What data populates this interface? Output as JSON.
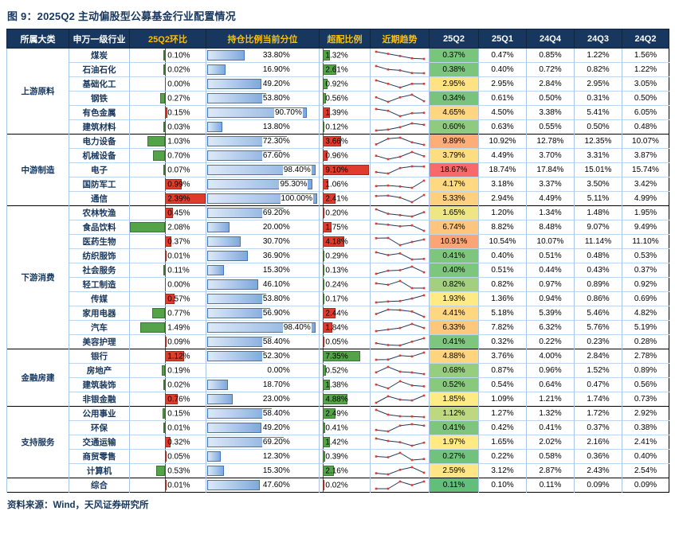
{
  "title": "图 9：2025Q2 主动偏股型公募基金行业配置情况",
  "source": "资料来源：Wind，天风证券研究所",
  "colors": {
    "header_bg": "#17375E",
    "header_text": "#FFFFFF",
    "header_highlight": "#FFC000",
    "up": "#E03C2D",
    "down": "#55A348",
    "percentile_bar_border": "#4472C4",
    "heat_low": "#63BE7B",
    "heat_mid": "#FFEB84",
    "heat_high": "#F8696B",
    "spark_line": "#1F3864",
    "spark_marker": "#E03C2D"
  },
  "chart_data": {
    "type": "table",
    "title": "图 9：2025Q2 主动偏股型公募基金行业配置情况",
    "columns": [
      "所属大类",
      "申万一级行业",
      "25Q2环比",
      "持仓比例当前分位",
      "超配比例",
      "近期趋势",
      "25Q2",
      "25Q1",
      "24Q4",
      "24Q3",
      "24Q2"
    ],
    "quarters_order": [
      "25Q2",
      "25Q1",
      "24Q4",
      "24Q3",
      "24Q2"
    ],
    "notes": "qoq=25Q2环比(%), pctile=持仓比例当前分位(%), ow=超配比例(%), quarters=持仓比例(%) 25Q2→24Q2; 正值红色、负值绿色",
    "groups": [
      {
        "name": "上游原料",
        "rows": [
          {
            "industry": "煤炭",
            "qoq": -0.1,
            "pctile": 33.8,
            "ow": -1.32,
            "quarters": [
              0.37,
              0.47,
              0.85,
              1.22,
              1.56
            ]
          },
          {
            "industry": "石油石化",
            "qoq": -0.02,
            "pctile": 16.9,
            "ow": -2.61,
            "quarters": [
              0.38,
              0.4,
              0.72,
              0.82,
              1.22
            ]
          },
          {
            "industry": "基础化工",
            "qoq": 0.0,
            "pctile": 49.2,
            "ow": -0.92,
            "quarters": [
              2.95,
              2.95,
              2.84,
              2.95,
              3.05
            ]
          },
          {
            "industry": "钢铁",
            "qoq": -0.27,
            "pctile": 53.8,
            "ow": -0.56,
            "quarters": [
              0.34,
              0.61,
              0.5,
              0.31,
              0.5
            ]
          },
          {
            "industry": "有色金属",
            "qoq": 0.15,
            "pctile": 90.7,
            "ow": 1.39,
            "quarters": [
              4.65,
              4.5,
              3.38,
              5.41,
              6.05
            ]
          },
          {
            "industry": "建筑材料",
            "qoq": -0.03,
            "pctile": 13.8,
            "ow": -0.12,
            "quarters": [
              0.6,
              0.63,
              0.55,
              0.5,
              0.48
            ]
          }
        ]
      },
      {
        "name": "中游制造",
        "rows": [
          {
            "industry": "电力设备",
            "qoq": -1.03,
            "pctile": 72.3,
            "ow": 3.66,
            "quarters": [
              9.89,
              10.92,
              12.78,
              12.35,
              10.07
            ]
          },
          {
            "industry": "机械设备",
            "qoq": -0.7,
            "pctile": 67.6,
            "ow": 0.96,
            "quarters": [
              3.79,
              4.49,
              3.7,
              3.31,
              3.87
            ]
          },
          {
            "industry": "电子",
            "qoq": -0.07,
            "pctile": 98.4,
            "ow": 9.1,
            "quarters": [
              18.67,
              18.74,
              17.84,
              15.01,
              15.74
            ]
          },
          {
            "industry": "国防军工",
            "qoq": 0.99,
            "pctile": 95.3,
            "ow": 1.06,
            "quarters": [
              4.17,
              3.18,
              3.37,
              3.5,
              3.42
            ]
          },
          {
            "industry": "通信",
            "qoq": 2.39,
            "pctile": 100.0,
            "ow": 2.41,
            "quarters": [
              5.33,
              2.94,
              4.49,
              5.11,
              4.99
            ]
          }
        ]
      },
      {
        "name": "下游消费",
        "rows": [
          {
            "industry": "农林牧渔",
            "qoq": 0.45,
            "pctile": 69.2,
            "ow": 0.2,
            "quarters": [
              1.65,
              1.2,
              1.34,
              1.48,
              1.95
            ]
          },
          {
            "industry": "食品饮料",
            "qoq": -2.08,
            "pctile": 20.0,
            "ow": 1.75,
            "quarters": [
              6.74,
              8.82,
              8.48,
              9.07,
              9.49
            ]
          },
          {
            "industry": "医药生物",
            "qoq": 0.37,
            "pctile": 30.7,
            "ow": 4.18,
            "quarters": [
              10.91,
              10.54,
              10.07,
              11.14,
              11.1
            ]
          },
          {
            "industry": "纺织服饰",
            "qoq": 0.01,
            "pctile": 36.9,
            "ow": -0.29,
            "quarters": [
              0.41,
              0.4,
              0.51,
              0.48,
              0.53
            ]
          },
          {
            "industry": "社会服务",
            "qoq": -0.11,
            "pctile": 15.3,
            "ow": -0.13,
            "quarters": [
              0.4,
              0.51,
              0.44,
              0.43,
              0.37
            ]
          },
          {
            "industry": "轻工制造",
            "qoq": 0.0,
            "pctile": 46.1,
            "ow": -0.24,
            "quarters": [
              0.82,
              0.82,
              0.97,
              0.89,
              0.92
            ]
          },
          {
            "industry": "传媒",
            "qoq": 0.57,
            "pctile": 53.8,
            "ow": -0.17,
            "quarters": [
              1.93,
              1.36,
              0.94,
              0.86,
              0.69
            ]
          },
          {
            "industry": "家用电器",
            "qoq": -0.77,
            "pctile": 56.9,
            "ow": 2.44,
            "quarters": [
              4.41,
              5.18,
              5.39,
              5.46,
              4.82
            ]
          },
          {
            "industry": "汽车",
            "qoq": -1.49,
            "pctile": 98.4,
            "ow": 1.84,
            "quarters": [
              6.33,
              7.82,
              6.32,
              5.76,
              5.19
            ]
          },
          {
            "industry": "美容护理",
            "qoq": 0.09,
            "pctile": 58.4,
            "ow": 0.05,
            "quarters": [
              0.41,
              0.32,
              0.22,
              0.23,
              0.28
            ]
          }
        ]
      },
      {
        "name": "金融房建",
        "rows": [
          {
            "industry": "银行",
            "qoq": 1.12,
            "pctile": 52.3,
            "ow": -7.35,
            "quarters": [
              4.88,
              3.76,
              4.0,
              2.84,
              2.78
            ]
          },
          {
            "industry": "房地产",
            "qoq": -0.19,
            "pctile": 0.0,
            "ow": -0.52,
            "quarters": [
              0.68,
              0.87,
              0.96,
              1.52,
              0.89
            ]
          },
          {
            "industry": "建筑装饰",
            "qoq": -0.02,
            "pctile": 18.7,
            "ow": -1.38,
            "quarters": [
              0.52,
              0.54,
              0.64,
              0.47,
              0.56
            ]
          },
          {
            "industry": "非银金融",
            "qoq": 0.76,
            "pctile": 23.0,
            "ow": -4.88,
            "quarters": [
              1.85,
              1.09,
              1.21,
              1.74,
              0.73
            ]
          }
        ]
      },
      {
        "name": "支持服务",
        "rows": [
          {
            "industry": "公用事业",
            "qoq": -0.15,
            "pctile": 58.4,
            "ow": -2.49,
            "quarters": [
              1.12,
              1.27,
              1.32,
              1.72,
              2.92
            ]
          },
          {
            "industry": "环保",
            "qoq": -0.01,
            "pctile": 49.2,
            "ow": -0.41,
            "quarters": [
              0.41,
              0.42,
              0.41,
              0.37,
              0.38
            ]
          },
          {
            "industry": "交通运输",
            "qoq": 0.32,
            "pctile": 69.2,
            "ow": -1.42,
            "quarters": [
              1.97,
              1.65,
              2.02,
              2.16,
              2.41
            ]
          },
          {
            "industry": "商贸零售",
            "qoq": 0.05,
            "pctile": 12.3,
            "ow": -0.39,
            "quarters": [
              0.27,
              0.22,
              0.58,
              0.36,
              0.4
            ]
          },
          {
            "industry": "计算机",
            "qoq": -0.53,
            "pctile": 15.3,
            "ow": -2.16,
            "quarters": [
              2.59,
              3.12,
              2.87,
              2.43,
              2.54
            ]
          }
        ]
      },
      {
        "name": "",
        "rows": [
          {
            "industry": "综合",
            "qoq": 0.01,
            "pctile": 47.6,
            "ow": 0.02,
            "quarters": [
              0.11,
              0.1,
              0.11,
              0.09,
              0.09
            ]
          }
        ]
      }
    ]
  }
}
